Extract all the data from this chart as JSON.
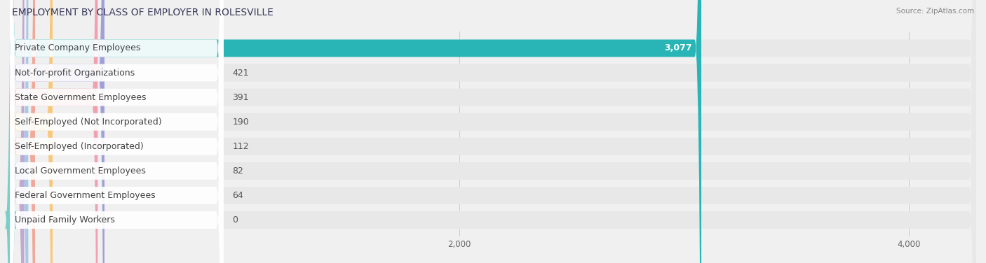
{
  "title": "EMPLOYMENT BY CLASS OF EMPLOYER IN ROLESVILLE",
  "source": "Source: ZipAtlas.com",
  "categories": [
    "Private Company Employees",
    "Not-for-profit Organizations",
    "State Government Employees",
    "Self-Employed (Not Incorporated)",
    "Self-Employed (Incorporated)",
    "Local Government Employees",
    "Federal Government Employees",
    "Unpaid Family Workers"
  ],
  "values": [
    3077,
    421,
    391,
    190,
    112,
    82,
    64,
    0
  ],
  "bar_colors": [
    "#29b5b5",
    "#a0a0d8",
    "#f0a0b0",
    "#f8c87a",
    "#f0a898",
    "#a8c8e8",
    "#c0a8d0",
    "#7acec8"
  ],
  "xlim_max": 4300,
  "xticks": [
    0,
    2000,
    4000
  ],
  "background_color": "#f0f0f0",
  "title_fontsize": 10,
  "label_fontsize": 9,
  "value_fontsize": 9
}
